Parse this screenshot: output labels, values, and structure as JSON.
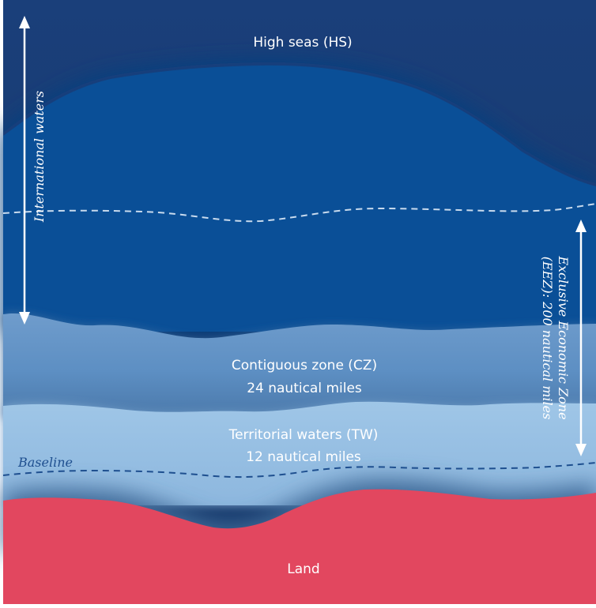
{
  "labels": {
    "high_seas": "High seas (HS)",
    "international_waters": "International waters",
    "eez_line1": "Exclusive Economic Zone",
    "eez_line2": "(EEZ): 200 nautical miles",
    "contiguous_title": "Contiguous zone (CZ)",
    "contiguous_distance": "24 nautical miles",
    "territorial_title": "Territorial waters (TW)",
    "territorial_distance": "12 nautical miles",
    "baseline": "Baseline",
    "land": "Land"
  },
  "colors": {
    "high_seas": "#163a72",
    "eez": "#0a4f97",
    "contiguous": "#6193c8",
    "territorial": "#9cc2e4",
    "shore_shadow": "#4d79a6",
    "land": "#e2475f",
    "dashed_line_light": "#c9dbee",
    "dashed_line_dark": "#1e4f8f"
  }
}
